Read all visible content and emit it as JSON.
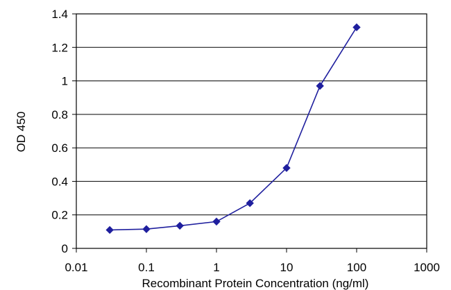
{
  "chart_data": {
    "type": "line",
    "title": "",
    "xlabel": "Recombinant Protein Concentration (ng/ml)",
    "ylabel": "OD 450",
    "xscale": "log",
    "xlim": [
      0.01,
      1000
    ],
    "ylim": [
      0,
      1.4
    ],
    "x_ticks": [
      0.01,
      0.1,
      1,
      10,
      100,
      1000
    ],
    "x_tick_labels": [
      "0.01",
      "0.1",
      "1",
      "10",
      "100",
      "1000"
    ],
    "y_ticks": [
      0,
      0.2,
      0.4,
      0.6,
      0.8,
      1,
      1.2,
      1.4
    ],
    "y_tick_labels": [
      "0",
      "0.2",
      "0.4",
      "0.6",
      "0.8",
      "1",
      "1.2",
      "1.4"
    ],
    "grid": "horizontal",
    "legend": "none",
    "series": [
      {
        "color": "#1f1f9e",
        "x": [
          0.03,
          0.1,
          0.3,
          1,
          3,
          10,
          30,
          100
        ],
        "y": [
          0.11,
          0.115,
          0.135,
          0.16,
          0.27,
          0.48,
          0.97,
          1.32
        ]
      }
    ]
  }
}
